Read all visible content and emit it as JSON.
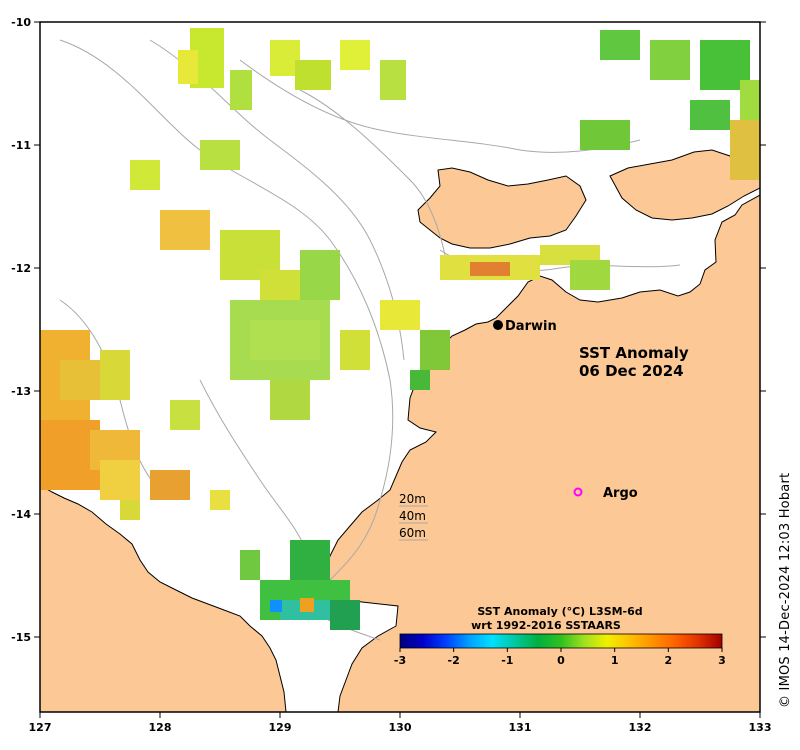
{
  "map": {
    "title_line1": "SST Anomaly",
    "title_line2": "06 Dec 2024",
    "lon_ticks": [
      "127",
      "128",
      "129",
      "130",
      "131",
      "132",
      "133"
    ],
    "lat_ticks": [
      "-10",
      "-11",
      "-12",
      "-13",
      "-14",
      "-15"
    ],
    "places": {
      "darwin": "Darwin",
      "argo": "Argo"
    },
    "depth_contours": [
      "20m",
      "40m",
      "60m"
    ],
    "colorbar": {
      "title_line1": "SST Anomaly (°C) L3SM-6d",
      "title_line2": "wrt 1992-2016 SSTAARS",
      "ticks": [
        "-3",
        "-2",
        "-1",
        "0",
        "1",
        "2",
        "3"
      ],
      "range": [
        -3,
        3
      ],
      "colors": [
        "#00007f",
        "#0000c8",
        "#0040ff",
        "#00a0ff",
        "#00e0ff",
        "#00c8a0",
        "#00b040",
        "#30c020",
        "#a0e020",
        "#f0f000",
        "#ffc000",
        "#ff9000",
        "#ff6000",
        "#e03000",
        "#a00000"
      ]
    },
    "credit": "© IMOS 14-Dec-2024 12:03 Hobart",
    "colors": {
      "land": "#fcc896",
      "ocean": "#ffffff",
      "contour": "#a8a8a8",
      "argo_marker": "#ff00ff"
    }
  }
}
